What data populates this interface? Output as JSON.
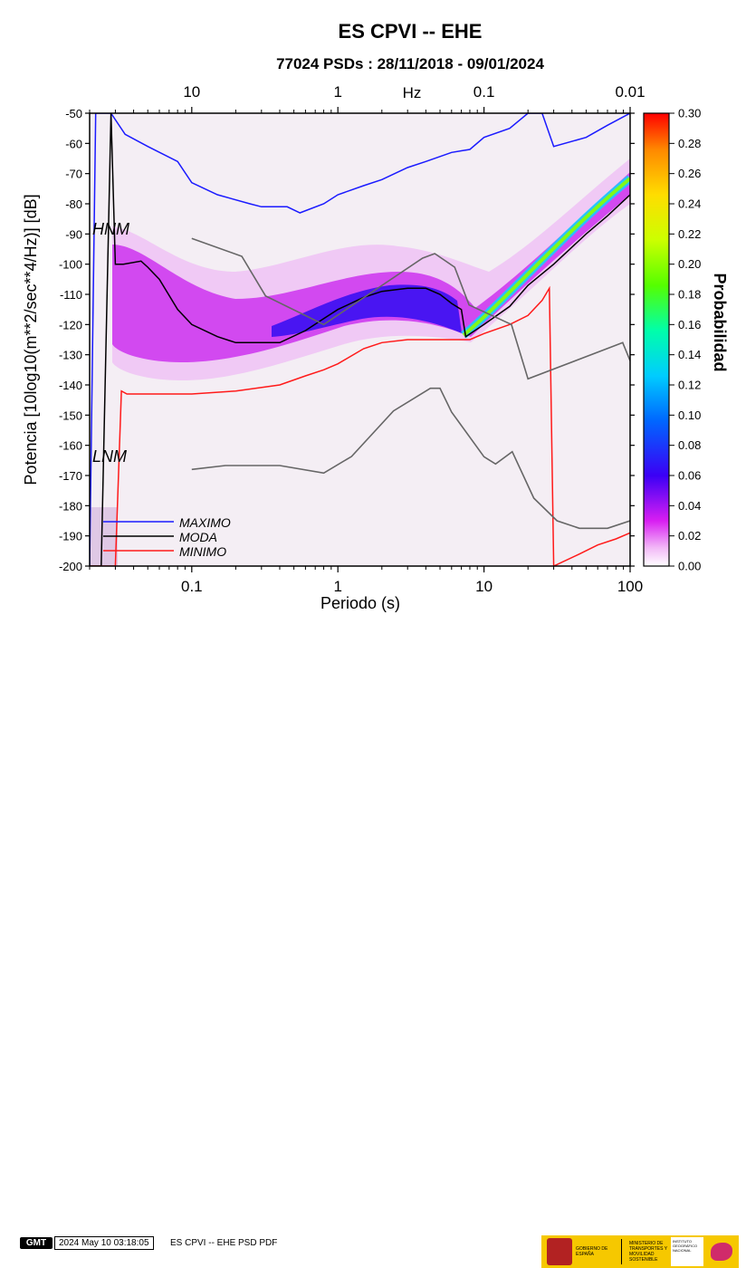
{
  "title": "ES CPVI -- EHE",
  "subtitle": "77024 PSDs : 28/11/2018 - 09/01/2024",
  "colors": {
    "maximo": "#1a1aff",
    "moda": "#000000",
    "minimo": "#ff1a1a",
    "noise_model": "#666666",
    "background_prob": "#f4eef4"
  },
  "chart_data": {
    "type": "heatmap",
    "title": "ES CPVI -- EHE",
    "subtitle": "77024 PSDs : 28/11/2018 - 09/01/2024",
    "xlabel": "Periodo (s)",
    "ylabel": "Potencia [10log10(m**2/sec**4/Hz)] [dB]",
    "x_scale": "log",
    "xlim": [
      0.02,
      100
    ],
    "ylim": [
      -200,
      -50
    ],
    "x_ticks": [
      "0.1",
      "1",
      "10",
      "100"
    ],
    "y_ticks": [
      "-50",
      "-60",
      "-70",
      "-80",
      "-90",
      "-100",
      "-110",
      "-120",
      "-130",
      "-140",
      "-150",
      "-160",
      "-170",
      "-180",
      "-190",
      "-200"
    ],
    "top_axis": {
      "label": "Hz",
      "ticks": [
        "10",
        "1",
        "0.1",
        "0.01"
      ]
    },
    "colorbar": {
      "label": "Probabilidad",
      "range": [
        0.0,
        0.3
      ],
      "ticks": [
        "0.30",
        "0.28",
        "0.26",
        "0.24",
        "0.22",
        "0.20",
        "0.18",
        "0.16",
        "0.14",
        "0.12",
        "0.10",
        "0.08",
        "0.06",
        "0.04",
        "0.02",
        "0.00"
      ]
    },
    "annotations": [
      "HNM",
      "LNM"
    ],
    "legend": {
      "placement": "bottom-left",
      "entries": [
        "MAXIMO",
        "MODA",
        "MINIMO"
      ]
    },
    "series": [
      {
        "name": "MAXIMO",
        "x": [
          0.02,
          0.022,
          0.028,
          0.035,
          0.05,
          0.08,
          0.1,
          0.15,
          0.25,
          0.3,
          0.45,
          0.55,
          0.8,
          1.0,
          1.5,
          2.0,
          3.0,
          4.0,
          6.0,
          8.0,
          10.0,
          15.0,
          20.0,
          25.0,
          30.0,
          50.0,
          70.0,
          100.0
        ],
        "y": [
          -200,
          -50,
          -50,
          -57,
          -61,
          -66,
          -73,
          -77,
          -80,
          -81,
          -81,
          -83,
          -80,
          -77,
          -74,
          -72,
          -68,
          -66,
          -63,
          -62,
          -58,
          -55,
          -50,
          -50,
          -61,
          -58,
          -54,
          -50
        ]
      },
      {
        "name": "MODA",
        "x": [
          0.02,
          0.024,
          0.028,
          0.03,
          0.034,
          0.045,
          0.05,
          0.06,
          0.08,
          0.1,
          0.15,
          0.2,
          0.3,
          0.4,
          0.6,
          0.8,
          1.0,
          1.5,
          2.0,
          3.0,
          4.0,
          5.0,
          6.0,
          7.0,
          7.5,
          10.0,
          15.0,
          20.0,
          30.0,
          50.0,
          70.0,
          100.0
        ],
        "y": [
          -200,
          -200,
          -50,
          -100,
          -100,
          -99,
          -101,
          -105,
          -115,
          -120,
          -124,
          -126,
          -126,
          -126,
          -122,
          -118,
          -115,
          -111,
          -109,
          -108,
          -108,
          -110,
          -113,
          -115,
          -124,
          -120,
          -114,
          -107,
          -100,
          -90,
          -84,
          -77
        ]
      },
      {
        "name": "MINIMO",
        "x": [
          0.02,
          0.024,
          0.03,
          0.033,
          0.036,
          0.05,
          0.1,
          0.2,
          0.4,
          0.6,
          0.8,
          1.0,
          1.5,
          2.0,
          3.0,
          5.0,
          8.0,
          10.0,
          15.0,
          20.0,
          25.0,
          28.0,
          30.0,
          45.0,
          60.0,
          80.0,
          100.0
        ],
        "y": [
          -200,
          -200,
          -200,
          -142,
          -143,
          -143,
          -143,
          -142,
          -140,
          -137,
          -135,
          -133,
          -128,
          -126,
          -125,
          -125,
          -125,
          -123,
          -120,
          -117,
          -112,
          -108,
          -200,
          -196,
          -193,
          -191,
          -189
        ]
      },
      {
        "name": "HNM",
        "x": [
          0.1,
          0.22,
          0.32,
          0.8,
          3.8,
          4.6,
          6.3,
          7.9,
          15.4,
          20.0,
          89.0,
          100.0
        ],
        "y": [
          -91.5,
          -97.4,
          -110.5,
          -120.0,
          -98.0,
          -96.5,
          -101.0,
          -113.5,
          -120.0,
          -138.0,
          -126.0,
          -132.0
        ]
      },
      {
        "name": "LNM",
        "x": [
          0.1,
          0.17,
          0.4,
          0.8,
          1.24,
          2.4,
          4.3,
          5.0,
          6.0,
          10.0,
          12.0,
          15.6,
          21.9,
          31.6,
          45.0,
          70.0,
          100.0
        ],
        "y": [
          -168.0,
          -166.7,
          -166.7,
          -169.2,
          -163.7,
          -148.6,
          -141.1,
          -141.1,
          -149.0,
          -163.8,
          -166.2,
          -162.1,
          -177.5,
          -185.0,
          -187.5,
          -187.5,
          -185.0
        ]
      }
    ]
  },
  "footer": {
    "gmt_badge": "GMT",
    "timestamp": "2024 May 10 03:18:05",
    "label": "ES CPVI -- EHE PSD PDF",
    "logo_text_1": "GOBIERNO DE ESPAÑA",
    "logo_text_2": "MINISTERIO DE TRANSPORTES Y MOVILIDAD SOSTENIBLE",
    "logo_text_3": "INSTITUTO GEOGRÁFICO NACIONAL"
  }
}
